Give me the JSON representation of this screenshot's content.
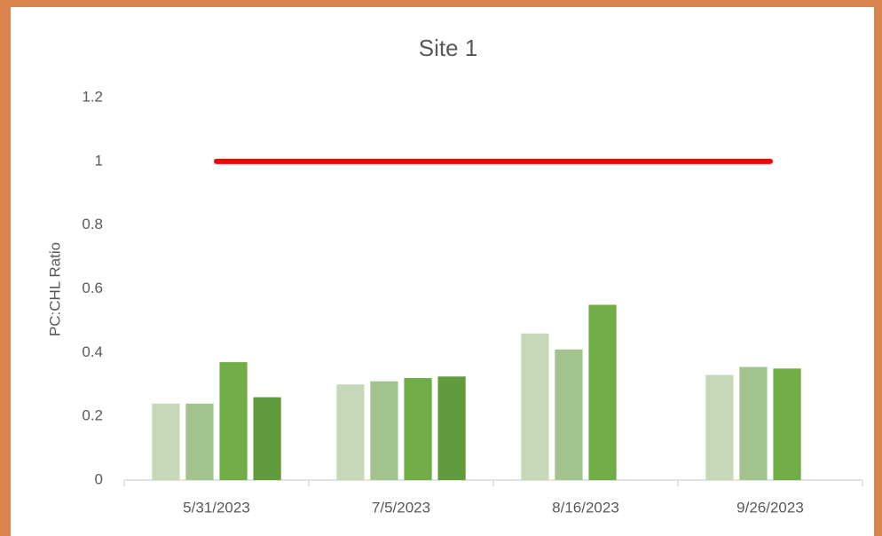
{
  "chart_data": {
    "type": "bar",
    "title": "Site 1",
    "y_label": "PC:CHL Ratio",
    "categories": [
      "5/31/2023",
      "7/5/2023",
      "8/16/2023",
      "9/26/2023"
    ],
    "series": [
      {
        "color": "#c5d9b9",
        "values": [
          0.24,
          0.3,
          0.46,
          0.33
        ]
      },
      {
        "color": "#a3c38e",
        "values": [
          0.24,
          0.31,
          0.41,
          0.355
        ]
      },
      {
        "color": "#70ad47",
        "values": [
          0.37,
          0.32,
          0.55,
          0.35
        ]
      },
      {
        "color": "#629a3e",
        "values": [
          0.26,
          0.325,
          null,
          null
        ]
      },
      {
        "type": "line",
        "color": "#ff0000",
        "values": [
          1,
          1,
          1,
          1
        ]
      }
    ],
    "ylim": [
      0,
      1.2
    ],
    "yticks": [
      0,
      0.2,
      0.4,
      0.6,
      0.8,
      1,
      1.2
    ],
    "grid": false
  }
}
